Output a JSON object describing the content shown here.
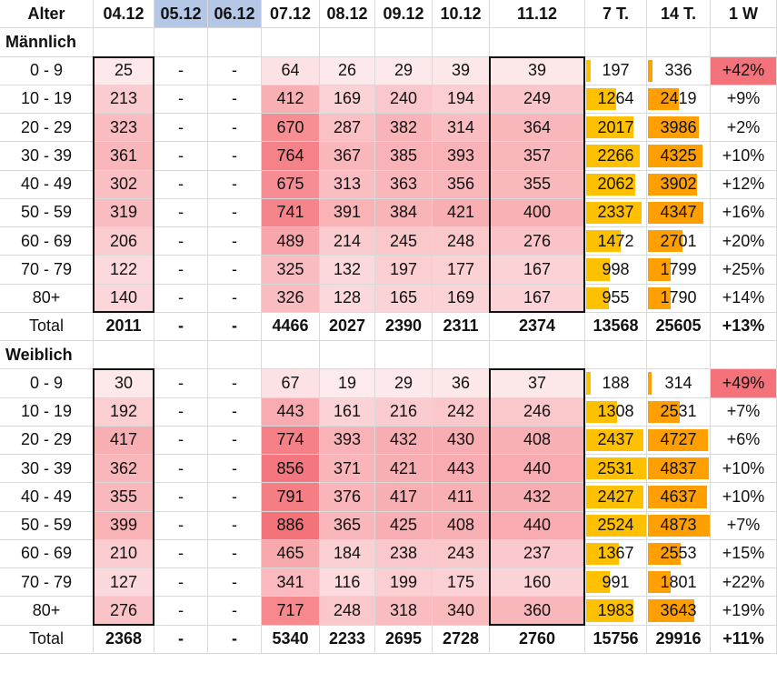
{
  "headers": [
    "Alter",
    "04.12",
    "05.12",
    "06.12",
    "07.12",
    "08.12",
    "09.12",
    "10.12",
    "11.12",
    "7 T.",
    "14 T.",
    "1 W"
  ],
  "colors": {
    "blank_header": "#b4c7e7",
    "heat_low": "#fdeef0",
    "heat_high": "#f4727a",
    "bar_7": "#ffc000",
    "bar_14": "#ffa000",
    "w_high": "#f4727a"
  },
  "sections": [
    {
      "label": "Männlich",
      "rows": [
        {
          "age": "0 - 9",
          "v": [
            "25",
            "-",
            "-",
            "64",
            "26",
            "29",
            "39",
            "39"
          ],
          "t7": "197",
          "t14": "336",
          "w": "+42%"
        },
        {
          "age": "10 - 19",
          "v": [
            "213",
            "-",
            "-",
            "412",
            "169",
            "240",
            "194",
            "249"
          ],
          "t7": "1264",
          "t14": "2419",
          "w": "+9%"
        },
        {
          "age": "20 - 29",
          "v": [
            "323",
            "-",
            "-",
            "670",
            "287",
            "382",
            "314",
            "364"
          ],
          "t7": "2017",
          "t14": "3986",
          "w": "+2%"
        },
        {
          "age": "30 - 39",
          "v": [
            "361",
            "-",
            "-",
            "764",
            "367",
            "385",
            "393",
            "357"
          ],
          "t7": "2266",
          "t14": "4325",
          "w": "+10%"
        },
        {
          "age": "40 - 49",
          "v": [
            "302",
            "-",
            "-",
            "675",
            "313",
            "363",
            "356",
            "355"
          ],
          "t7": "2062",
          "t14": "3902",
          "w": "+12%"
        },
        {
          "age": "50 - 59",
          "v": [
            "319",
            "-",
            "-",
            "741",
            "391",
            "384",
            "421",
            "400"
          ],
          "t7": "2337",
          "t14": "4347",
          "w": "+16%"
        },
        {
          "age": "60 - 69",
          "v": [
            "206",
            "-",
            "-",
            "489",
            "214",
            "245",
            "248",
            "276"
          ],
          "t7": "1472",
          "t14": "2701",
          "w": "+20%"
        },
        {
          "age": "70 - 79",
          "v": [
            "122",
            "-",
            "-",
            "325",
            "132",
            "197",
            "177",
            "167"
          ],
          "t7": "998",
          "t14": "1799",
          "w": "+25%"
        },
        {
          "age": "80+",
          "v": [
            "140",
            "-",
            "-",
            "326",
            "128",
            "165",
            "169",
            "167"
          ],
          "t7": "955",
          "t14": "1790",
          "w": "+14%"
        }
      ],
      "total": {
        "age": "Total",
        "v": [
          "2011",
          "-",
          "-",
          "4466",
          "2027",
          "2390",
          "2311",
          "2374"
        ],
        "t7": "13568",
        "t14": "25605",
        "w": "+13%"
      }
    },
    {
      "label": "Weiblich",
      "rows": [
        {
          "age": "0 - 9",
          "v": [
            "30",
            "-",
            "-",
            "67",
            "19",
            "29",
            "36",
            "37"
          ],
          "t7": "188",
          "t14": "314",
          "w": "+49%"
        },
        {
          "age": "10 - 19",
          "v": [
            "192",
            "-",
            "-",
            "443",
            "161",
            "216",
            "242",
            "246"
          ],
          "t7": "1308",
          "t14": "2531",
          "w": "+7%"
        },
        {
          "age": "20 - 29",
          "v": [
            "417",
            "-",
            "-",
            "774",
            "393",
            "432",
            "430",
            "408"
          ],
          "t7": "2437",
          "t14": "4727",
          "w": "+6%"
        },
        {
          "age": "30 - 39",
          "v": [
            "362",
            "-",
            "-",
            "856",
            "371",
            "421",
            "443",
            "440"
          ],
          "t7": "2531",
          "t14": "4837",
          "w": "+10%"
        },
        {
          "age": "40 - 49",
          "v": [
            "355",
            "-",
            "-",
            "791",
            "376",
            "417",
            "411",
            "432"
          ],
          "t7": "2427",
          "t14": "4637",
          "w": "+10%"
        },
        {
          "age": "50 - 59",
          "v": [
            "399",
            "-",
            "-",
            "886",
            "365",
            "425",
            "408",
            "440"
          ],
          "t7": "2524",
          "t14": "4873",
          "w": "+7%"
        },
        {
          "age": "60 - 69",
          "v": [
            "210",
            "-",
            "-",
            "465",
            "184",
            "238",
            "243",
            "237"
          ],
          "t7": "1367",
          "t14": "2553",
          "w": "+15%"
        },
        {
          "age": "70 - 79",
          "v": [
            "127",
            "-",
            "-",
            "341",
            "116",
            "199",
            "175",
            "160"
          ],
          "t7": "991",
          "t14": "1801",
          "w": "+22%"
        },
        {
          "age": "80+",
          "v": [
            "276",
            "-",
            "-",
            "717",
            "248",
            "318",
            "340",
            "360"
          ],
          "t7": "1983",
          "t14": "3643",
          "w": "+19%"
        }
      ],
      "total": {
        "age": "Total",
        "v": [
          "2368",
          "-",
          "-",
          "5340",
          "2233",
          "2695",
          "2728",
          "2760"
        ],
        "t7": "15756",
        "t14": "29916",
        "w": "+11%"
      }
    }
  ]
}
